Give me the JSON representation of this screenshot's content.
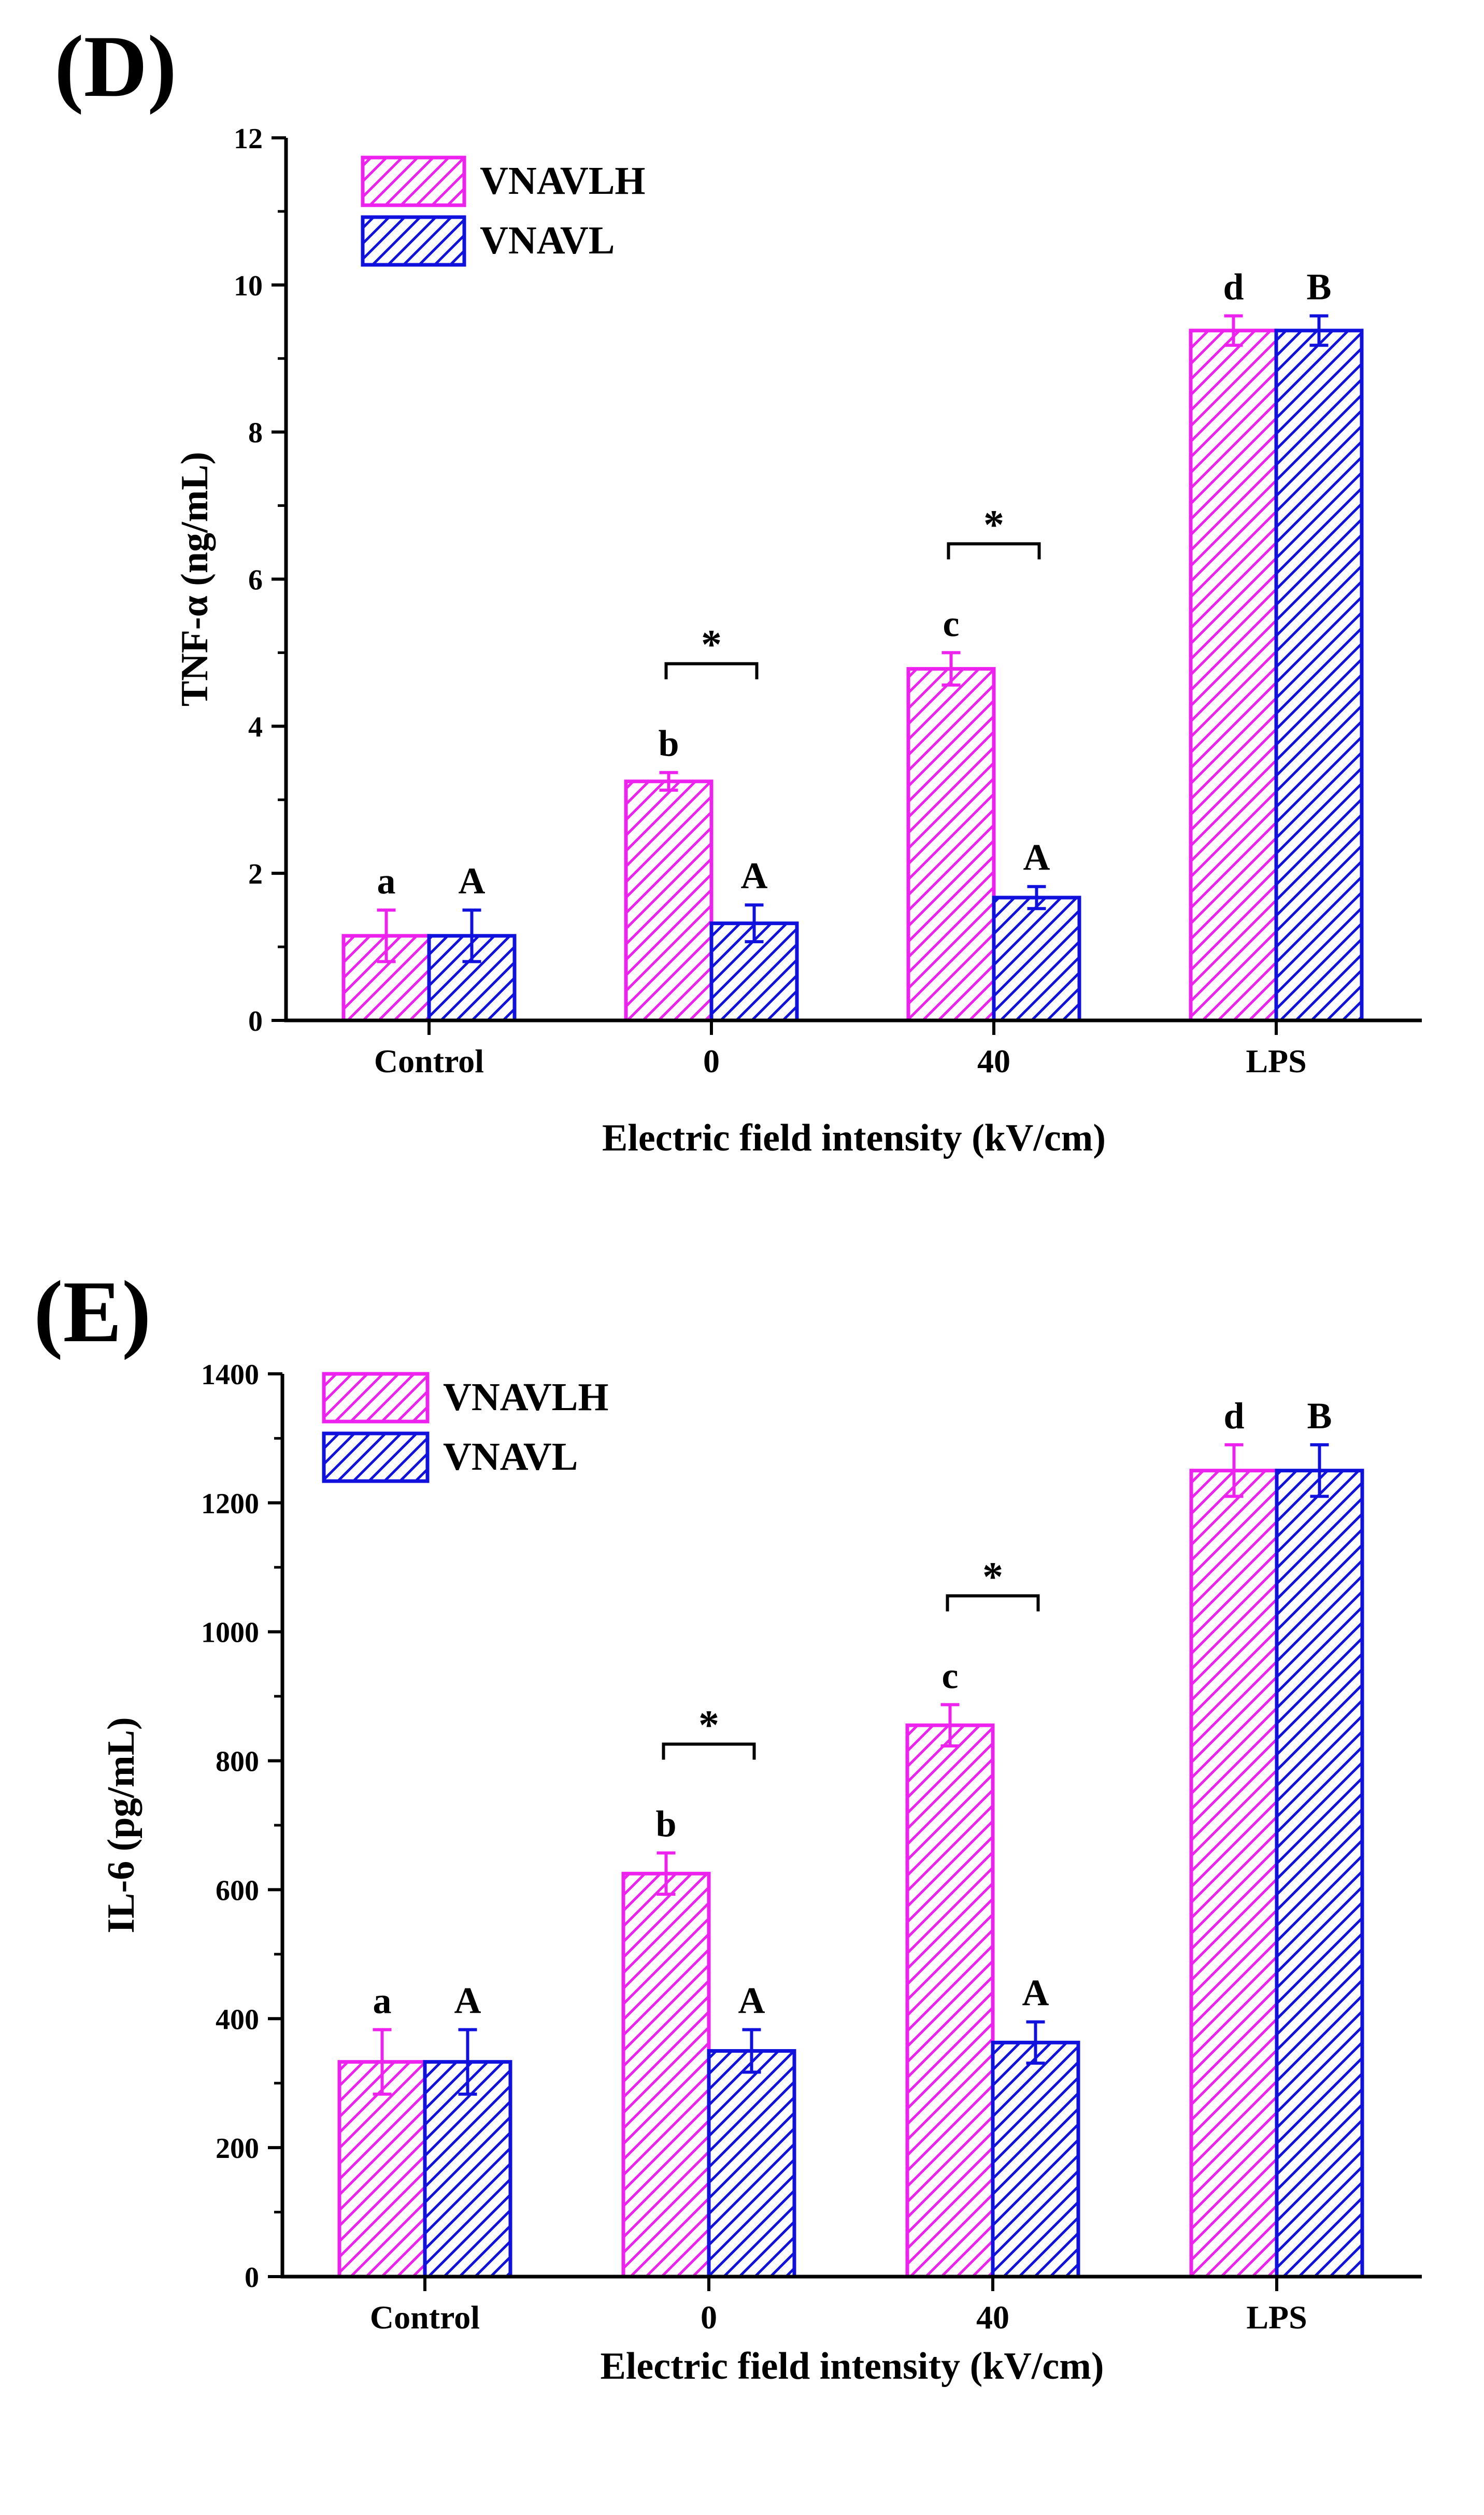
{
  "colors": {
    "series_1": "#ee22ee",
    "series_2": "#1111dd",
    "axis": "#000000"
  },
  "chart_data": [
    {
      "panel_label": "(D)",
      "type": "bar",
      "title": "",
      "xlabel": "Electric field intensity (kV/cm)",
      "ylabel": "TNF-α (ng/mL)",
      "categories": [
        "Control",
        "0",
        "40",
        "LPS"
      ],
      "ylim": [
        0,
        12
      ],
      "yticks": [
        0,
        2,
        4,
        6,
        8,
        10,
        12
      ],
      "ytick_labels": [
        "0",
        "2",
        "4",
        "6",
        "8",
        "10",
        "12"
      ],
      "legend_position": "top-left",
      "grid": false,
      "series": [
        {
          "name": "VNAVLH",
          "values": [
            1.15,
            3.25,
            4.78,
            9.38
          ],
          "errors": [
            0.35,
            0.12,
            0.22,
            0.2
          ],
          "letters": [
            "a",
            "b",
            "c",
            "d"
          ]
        },
        {
          "name": "VNAVL",
          "values": [
            1.15,
            1.32,
            1.67,
            9.38
          ],
          "errors": [
            0.35,
            0.25,
            0.15,
            0.2
          ],
          "letters": [
            "A",
            "A",
            "A",
            "B"
          ]
        }
      ],
      "significance": [
        {
          "category": "0",
          "label": "*"
        },
        {
          "category": "40",
          "label": "*"
        }
      ]
    },
    {
      "panel_label": "(E)",
      "type": "bar",
      "title": "",
      "xlabel": "Electric field intensity (kV/cm)",
      "ylabel": "IL-6 (pg/mL)",
      "categories": [
        "Control",
        "0",
        "40",
        "LPS"
      ],
      "ylim": [
        0,
        1400
      ],
      "yticks": [
        0,
        200,
        400,
        600,
        800,
        1000,
        1200,
        1400
      ],
      "ytick_labels": [
        "0",
        "200",
        "400",
        "600",
        "800",
        "1000",
        "1200",
        "1400"
      ],
      "legend_position": "top-left",
      "grid": false,
      "series": [
        {
          "name": "VNAVLH",
          "values": [
            333,
            625,
            855,
            1250
          ],
          "errors": [
            50,
            32,
            32,
            40
          ],
          "letters": [
            "a",
            "b",
            "c",
            "d"
          ]
        },
        {
          "name": "VNAVL",
          "values": [
            333,
            350,
            363,
            1250
          ],
          "errors": [
            50,
            33,
            32,
            40
          ],
          "letters": [
            "A",
            "A",
            "A",
            "B"
          ]
        }
      ],
      "significance": [
        {
          "category": "0",
          "label": "*"
        },
        {
          "category": "40",
          "label": "*"
        }
      ]
    }
  ]
}
